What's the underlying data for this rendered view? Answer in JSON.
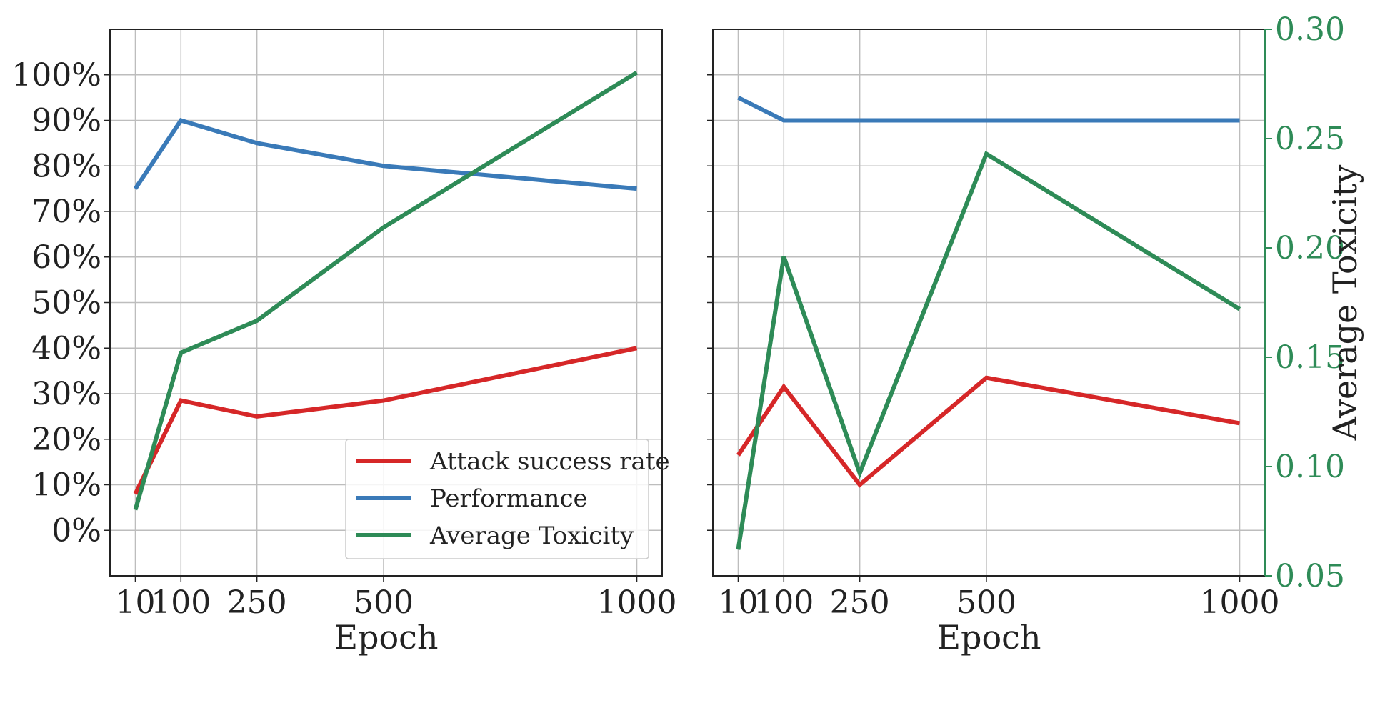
{
  "colors": {
    "attack": "#d62728",
    "performance": "#3a7ab8",
    "toxicity": "#2e8b57",
    "grid": "#bdbdbd",
    "axis": "#222222"
  },
  "legend": {
    "placement": "lower-right",
    "items": [
      "Attack success rate",
      "Performance",
      "Average Toxicity"
    ]
  },
  "chart_data": [
    {
      "type": "line",
      "xlabel": "Epoch",
      "ylabel": "",
      "x": [
        10,
        100,
        250,
        500,
        1000
      ],
      "x_tick_labels": [
        "10",
        "100",
        "250",
        "500",
        "1000"
      ],
      "xlim": [
        -40,
        1050
      ],
      "ylim": [
        -10,
        110
      ],
      "y_ticks": [
        0,
        10,
        20,
        30,
        40,
        50,
        60,
        70,
        80,
        90,
        100
      ],
      "y_tick_labels": [
        "0%",
        "10%",
        "20%",
        "30%",
        "40%",
        "50%",
        "60%",
        "70%",
        "80%",
        "90%",
        "100%"
      ],
      "grid": true,
      "series": [
        {
          "name": "Attack success rate",
          "values": [
            8,
            28.5,
            25,
            28.5,
            40
          ]
        },
        {
          "name": "Performance",
          "values": [
            75,
            90,
            85,
            80,
            75
          ]
        },
        {
          "name": "Average Toxicity",
          "values": [
            4.5,
            39,
            46,
            66.5,
            100.5
          ]
        }
      ]
    },
    {
      "type": "line",
      "xlabel": "Epoch",
      "ylabel_right": "Average Toxicity",
      "x": [
        10,
        100,
        250,
        500,
        1000
      ],
      "x_tick_labels": [
        "10",
        "100",
        "250",
        "500",
        "1000"
      ],
      "xlim": [
        -40,
        1050
      ],
      "ylim": [
        -10,
        110
      ],
      "ylim_right": [
        0.05,
        0.3
      ],
      "y_right_ticks": [
        0.05,
        0.1,
        0.15,
        0.2,
        0.25,
        0.3
      ],
      "y_right_tick_labels": [
        "0.05",
        "0.10",
        "0.15",
        "0.20",
        "0.25",
        "0.30"
      ],
      "grid": true,
      "series": [
        {
          "name": "Attack success rate",
          "axis": "left",
          "values": [
            16.5,
            31.5,
            10,
            33.5,
            23.5
          ]
        },
        {
          "name": "Performance",
          "axis": "left",
          "values": [
            95,
            90,
            90,
            90,
            90
          ]
        },
        {
          "name": "Average Toxicity",
          "axis": "right",
          "values": [
            0.062,
            0.196,
            0.097,
            0.243,
            0.172
          ]
        }
      ]
    }
  ]
}
